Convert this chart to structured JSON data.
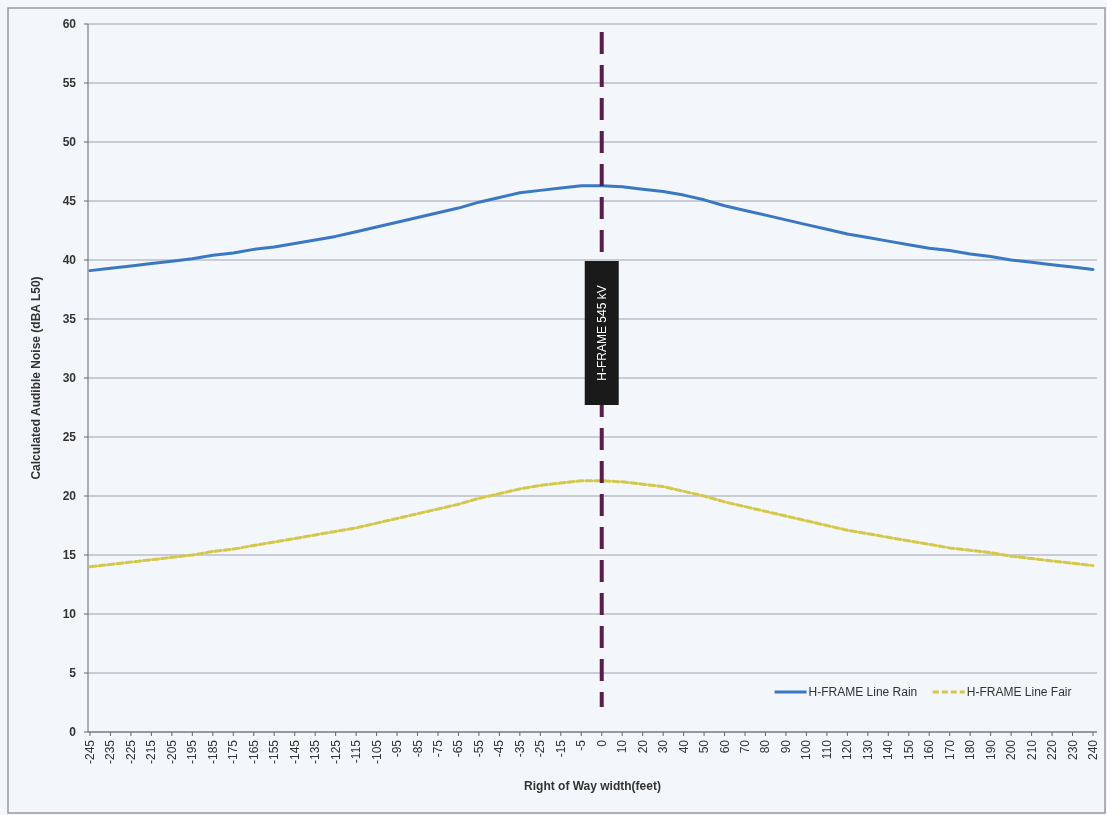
{
  "chart_data": {
    "type": "line",
    "xlabel": "Right of Way width(feet)",
    "ylabel": "Calculated Audible Noise (dBA L50)",
    "categories": [
      "-245",
      "-235",
      "-225",
      "-215",
      "-205",
      "-195",
      "-185",
      "-175",
      "-165",
      "-155",
      "-145",
      "-135",
      "-125",
      "-115",
      "-105",
      "-95",
      "-85",
      "-75",
      "-65",
      "-55",
      "-45",
      "-35",
      "-25",
      "-15",
      "-5",
      "0",
      "10",
      "20",
      "30",
      "40",
      "50",
      "60",
      "70",
      "80",
      "90",
      "100",
      "110",
      "120",
      "130",
      "140",
      "150",
      "160",
      "170",
      "180",
      "190",
      "200",
      "210",
      "220",
      "230",
      "240"
    ],
    "series": [
      {
        "name": "H-FRAME Line Rain",
        "color": "#3a78c4",
        "line_style": "solid",
        "values": [
          39.1,
          39.3,
          39.5,
          39.7,
          39.9,
          40.1,
          40.4,
          40.6,
          40.9,
          41.1,
          41.4,
          41.7,
          42.0,
          42.4,
          42.8,
          43.2,
          43.6,
          44.0,
          44.4,
          44.9,
          45.3,
          45.7,
          45.9,
          46.1,
          46.3,
          46.3,
          46.2,
          46.0,
          45.8,
          45.5,
          45.1,
          44.6,
          44.2,
          43.8,
          43.4,
          43.0,
          42.6,
          42.2,
          41.9,
          41.6,
          41.3,
          41.0,
          40.8,
          40.5,
          40.3,
          40.0,
          39.8,
          39.6,
          39.4,
          39.2
        ]
      },
      {
        "name": "H-FRAME Line Fair",
        "color": "#d4c84a",
        "line_style": "dashed",
        "values": [
          14.0,
          14.2,
          14.4,
          14.6,
          14.8,
          15.0,
          15.3,
          15.5,
          15.8,
          16.1,
          16.4,
          16.7,
          17.0,
          17.3,
          17.7,
          18.1,
          18.5,
          18.9,
          19.3,
          19.8,
          20.2,
          20.6,
          20.9,
          21.1,
          21.3,
          21.3,
          21.2,
          21.0,
          20.8,
          20.4,
          20.0,
          19.5,
          19.1,
          18.7,
          18.3,
          17.9,
          17.5,
          17.1,
          16.8,
          16.5,
          16.2,
          15.9,
          15.6,
          15.4,
          15.2,
          14.9,
          14.7,
          14.5,
          14.3,
          14.1
        ]
      }
    ],
    "ylim": [
      0,
      60
    ],
    "yticks": [
      0,
      5,
      10,
      15,
      20,
      25,
      30,
      35,
      40,
      45,
      50,
      55,
      60
    ],
    "grid": "y",
    "legend": "bottom right",
    "marker": "none",
    "ref_lines": [
      {
        "axis": "x",
        "value": "0",
        "label": "H-FRAME 545 kV",
        "color": "#5a1e4a",
        "line_style": "dashed"
      }
    ]
  }
}
